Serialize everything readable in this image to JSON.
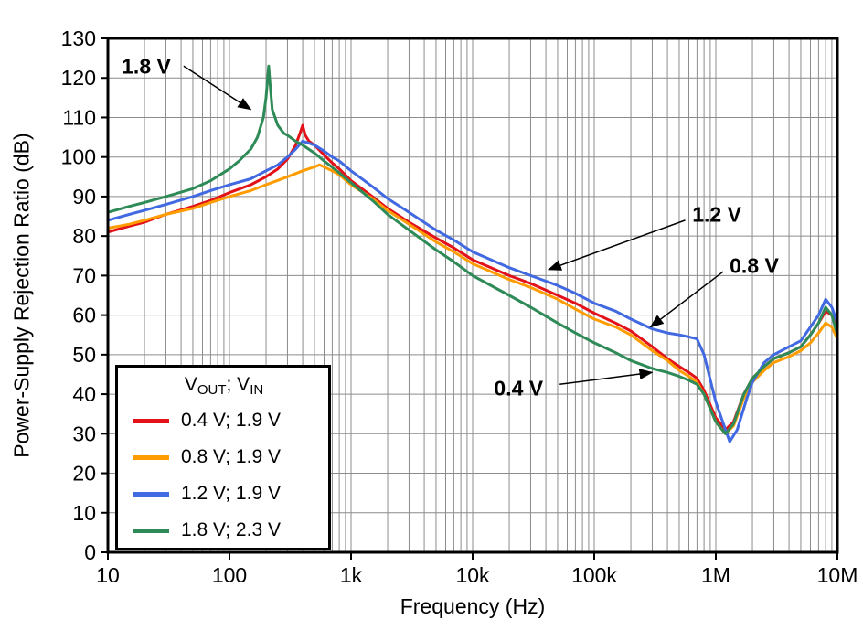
{
  "chart_data": {
    "type": "line",
    "title": "",
    "xlabel": "Frequency (Hz)",
    "ylabel": "Power-Supply Rejection Ratio (dB)",
    "xscale": "log",
    "xlim": [
      10,
      10000000
    ],
    "ylim": [
      0,
      130
    ],
    "ytick_step": 10,
    "grid": true,
    "grid_color": "#8c8c8c",
    "border_color": "#000000",
    "xticks": [
      {
        "value": 10,
        "label": "10"
      },
      {
        "value": 100,
        "label": "100"
      },
      {
        "value": 1000,
        "label": "1k"
      },
      {
        "value": 10000,
        "label": "10k"
      },
      {
        "value": 100000,
        "label": "100k"
      },
      {
        "value": 1000000,
        "label": "1M"
      },
      {
        "value": 10000000,
        "label": "10M"
      }
    ],
    "legend": {
      "position": "bottom-left",
      "title_segments": [
        {
          "text": "V"
        },
        {
          "text": "OUT",
          "sub": true
        },
        {
          "text": "; V"
        },
        {
          "text": "IN",
          "sub": true
        }
      ]
    },
    "series": [
      {
        "name": "0.4 V; 1.9 V",
        "color": "#e31219",
        "points": [
          [
            10,
            81
          ],
          [
            15,
            82.5
          ],
          [
            20,
            83.5
          ],
          [
            30,
            85.5
          ],
          [
            50,
            87.5
          ],
          [
            70,
            89
          ],
          [
            100,
            91
          ],
          [
            150,
            93
          ],
          [
            200,
            95
          ],
          [
            250,
            97
          ],
          [
            300,
            99.5
          ],
          [
            350,
            103
          ],
          [
            380,
            106
          ],
          [
            400,
            108
          ],
          [
            420,
            105.5
          ],
          [
            450,
            104
          ],
          [
            500,
            103
          ],
          [
            600,
            100.5
          ],
          [
            700,
            98.5
          ],
          [
            800,
            97
          ],
          [
            1000,
            94
          ],
          [
            1500,
            90
          ],
          [
            2000,
            87
          ],
          [
            3000,
            83.5
          ],
          [
            5000,
            79.5
          ],
          [
            7000,
            77
          ],
          [
            10000,
            74
          ],
          [
            20000,
            70
          ],
          [
            30000,
            68
          ],
          [
            50000,
            65
          ],
          [
            70000,
            63
          ],
          [
            100000,
            60.5
          ],
          [
            150000,
            58
          ],
          [
            200000,
            56
          ],
          [
            300000,
            52
          ],
          [
            400000,
            49
          ],
          [
            500000,
            47
          ],
          [
            600000,
            45.5
          ],
          [
            700000,
            44
          ],
          [
            800000,
            41
          ],
          [
            1000000,
            34
          ],
          [
            1200000,
            31
          ],
          [
            1400000,
            33
          ],
          [
            1700000,
            40
          ],
          [
            2000000,
            44
          ],
          [
            2500000,
            47
          ],
          [
            3000000,
            49
          ],
          [
            4000000,
            50.5
          ],
          [
            5000000,
            52
          ],
          [
            6000000,
            55
          ],
          [
            7000000,
            58
          ],
          [
            8000000,
            61
          ],
          [
            9000000,
            60
          ],
          [
            10000000,
            57
          ]
        ]
      },
      {
        "name": "0.8 V; 1.9 V",
        "color": "#ff9c00",
        "points": [
          [
            10,
            82
          ],
          [
            15,
            83
          ],
          [
            20,
            84
          ],
          [
            30,
            85.5
          ],
          [
            50,
            87
          ],
          [
            70,
            88.5
          ],
          [
            100,
            90
          ],
          [
            150,
            91.5
          ],
          [
            200,
            93
          ],
          [
            300,
            95
          ],
          [
            400,
            96.5
          ],
          [
            500,
            97.5
          ],
          [
            550,
            98
          ],
          [
            600,
            97.5
          ],
          [
            700,
            96.5
          ],
          [
            800,
            95.5
          ],
          [
            1000,
            93
          ],
          [
            1500,
            89.5
          ],
          [
            2000,
            86.5
          ],
          [
            3000,
            83
          ],
          [
            5000,
            78.5
          ],
          [
            7000,
            76
          ],
          [
            10000,
            73
          ],
          [
            20000,
            69
          ],
          [
            30000,
            67
          ],
          [
            50000,
            64
          ],
          [
            70000,
            61.5
          ],
          [
            100000,
            59
          ],
          [
            150000,
            57
          ],
          [
            200000,
            55
          ],
          [
            300000,
            51
          ],
          [
            400000,
            48.5
          ],
          [
            500000,
            46
          ],
          [
            600000,
            44.5
          ],
          [
            700000,
            43
          ],
          [
            800000,
            40
          ],
          [
            1000000,
            33
          ],
          [
            1200000,
            30
          ],
          [
            1400000,
            32
          ],
          [
            1700000,
            39
          ],
          [
            2000000,
            43
          ],
          [
            2500000,
            46
          ],
          [
            3000000,
            48
          ],
          [
            4000000,
            49.5
          ],
          [
            5000000,
            51
          ],
          [
            6000000,
            53
          ],
          [
            7000000,
            55.5
          ],
          [
            8000000,
            58
          ],
          [
            9000000,
            57
          ],
          [
            10000000,
            54
          ]
        ]
      },
      {
        "name": "1.2 V; 1.9 V",
        "color": "#4169e1",
        "points": [
          [
            10,
            84
          ],
          [
            15,
            85.5
          ],
          [
            20,
            86.5
          ],
          [
            30,
            88
          ],
          [
            50,
            90
          ],
          [
            70,
            91.5
          ],
          [
            100,
            93
          ],
          [
            150,
            94.5
          ],
          [
            200,
            96.5
          ],
          [
            250,
            98
          ],
          [
            300,
            100
          ],
          [
            350,
            102
          ],
          [
            400,
            104
          ],
          [
            450,
            103.5
          ],
          [
            500,
            103
          ],
          [
            600,
            101.5
          ],
          [
            700,
            100
          ],
          [
            800,
            99
          ],
          [
            1000,
            96.5
          ],
          [
            1500,
            92.5
          ],
          [
            2000,
            89.5
          ],
          [
            3000,
            86
          ],
          [
            5000,
            81.5
          ],
          [
            7000,
            79
          ],
          [
            10000,
            76
          ],
          [
            20000,
            72
          ],
          [
            30000,
            70
          ],
          [
            50000,
            67.5
          ],
          [
            70000,
            65.5
          ],
          [
            100000,
            63
          ],
          [
            150000,
            61
          ],
          [
            200000,
            59
          ],
          [
            300000,
            56.5
          ],
          [
            400000,
            55.5
          ],
          [
            500000,
            55
          ],
          [
            600000,
            54.5
          ],
          [
            700000,
            54
          ],
          [
            800000,
            50
          ],
          [
            1000000,
            38
          ],
          [
            1300000,
            28
          ],
          [
            1500000,
            31
          ],
          [
            1800000,
            39
          ],
          [
            2000000,
            43
          ],
          [
            2500000,
            48
          ],
          [
            3000000,
            50
          ],
          [
            4000000,
            52
          ],
          [
            5000000,
            53.5
          ],
          [
            6000000,
            57
          ],
          [
            7000000,
            60
          ],
          [
            8000000,
            64
          ],
          [
            9000000,
            62
          ],
          [
            10000000,
            58
          ]
        ]
      },
      {
        "name": "1.8 V; 2.3 V",
        "color": "#2e8b57",
        "points": [
          [
            10,
            86
          ],
          [
            15,
            87.5
          ],
          [
            20,
            88.5
          ],
          [
            30,
            90
          ],
          [
            50,
            92
          ],
          [
            70,
            94
          ],
          [
            100,
            97
          ],
          [
            120,
            99
          ],
          [
            150,
            102
          ],
          [
            170,
            105
          ],
          [
            190,
            110
          ],
          [
            200,
            115
          ],
          [
            210,
            123
          ],
          [
            215,
            119
          ],
          [
            225,
            112
          ],
          [
            250,
            108
          ],
          [
            280,
            106
          ],
          [
            300,
            105.5
          ],
          [
            350,
            104
          ],
          [
            400,
            103
          ],
          [
            500,
            101
          ],
          [
            600,
            99
          ],
          [
            800,
            96
          ],
          [
            1000,
            93.5
          ],
          [
            1500,
            89
          ],
          [
            2000,
            85.5
          ],
          [
            3000,
            81.5
          ],
          [
            5000,
            76.5
          ],
          [
            7000,
            73.5
          ],
          [
            10000,
            70
          ],
          [
            20000,
            65
          ],
          [
            30000,
            62
          ],
          [
            50000,
            58
          ],
          [
            70000,
            55.5
          ],
          [
            100000,
            53
          ],
          [
            150000,
            50.5
          ],
          [
            200000,
            48.5
          ],
          [
            300000,
            46.5
          ],
          [
            400000,
            45.5
          ],
          [
            500000,
            44.5
          ],
          [
            600000,
            43.5
          ],
          [
            700000,
            42.5
          ],
          [
            800000,
            40
          ],
          [
            1000000,
            33
          ],
          [
            1200000,
            30
          ],
          [
            1400000,
            32.5
          ],
          [
            1700000,
            40
          ],
          [
            2000000,
            44
          ],
          [
            2500000,
            47
          ],
          [
            3000000,
            49
          ],
          [
            4000000,
            50.5
          ],
          [
            5000000,
            52
          ],
          [
            6000000,
            55
          ],
          [
            7000000,
            58
          ],
          [
            8000000,
            62
          ],
          [
            9000000,
            60
          ],
          [
            10000000,
            55
          ]
        ]
      }
    ],
    "annotations": [
      {
        "label": "1.8 V",
        "anchor": "start",
        "label_at": {
          "f": 13,
          "db": 123
        },
        "line": [
          {
            "f": 42,
            "db": 123
          },
          {
            "f": 150,
            "db": 112
          }
        ]
      },
      {
        "label": "1.2 V",
        "anchor": "start",
        "label_at": {
          "f": 640000,
          "db": 85.5
        },
        "line": [
          {
            "f": 560000,
            "db": 84
          },
          {
            "f": 42000,
            "db": 71.5
          }
        ]
      },
      {
        "label": "0.8 V",
        "anchor": "start",
        "label_at": {
          "f": 1300000,
          "db": 72.5
        },
        "line": [
          {
            "f": 1150000,
            "db": 71
          },
          {
            "f": 290000,
            "db": 57
          }
        ]
      },
      {
        "label": "0.4 V",
        "anchor": "start",
        "label_at": {
          "f": 15000,
          "db": 41.5
        },
        "line": [
          {
            "f": 52000,
            "db": 42.5
          },
          {
            "f": 300000,
            "db": 45.5
          }
        ]
      }
    ]
  }
}
